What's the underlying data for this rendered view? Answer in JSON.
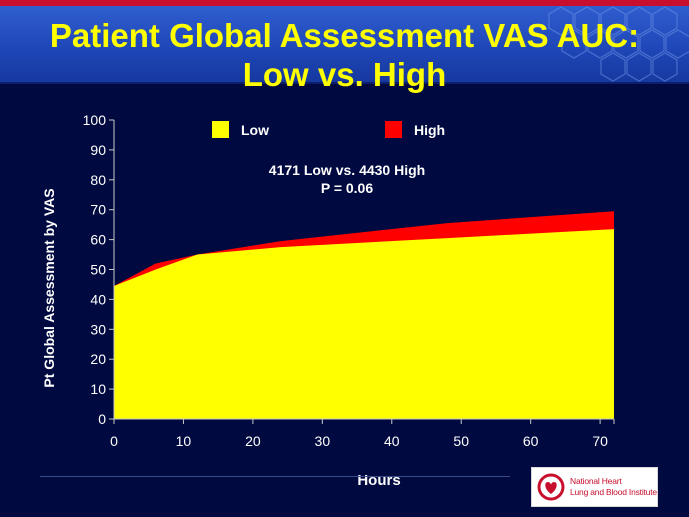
{
  "slide": {
    "title_line1": "Patient Global Assessment VAS AUC:",
    "title_line2": "Low vs. High",
    "logo_text_line1": "National Heart",
    "logo_text_line2": "Lung and Blood Institute",
    "colors": {
      "header_band": "#1f47b8",
      "background": "#000a40",
      "title_text": "#ffff00",
      "accent_stripe": "#c8102e"
    }
  },
  "chart_data": {
    "type": "area",
    "xlabel": "Hours",
    "ylabel": "Pt Global Assessment  by VAS",
    "xlim": [
      0,
      72
    ],
    "ylim": [
      0,
      100
    ],
    "x_ticks": [
      0,
      10,
      20,
      30,
      40,
      50,
      60,
      70
    ],
    "y_ticks": [
      0,
      10,
      20,
      30,
      40,
      50,
      60,
      70,
      80,
      90,
      100
    ],
    "grid": false,
    "legend_position": "top",
    "annotation_line1": "4171 Low vs. 4430 High",
    "annotation_line2": "P = 0.06",
    "series": [
      {
        "name": "High",
        "color": "#ff0000",
        "x": [
          0,
          6,
          12,
          24,
          48,
          72
        ],
        "values": [
          44.5,
          52,
          55,
          59.5,
          65.5,
          69.5
        ]
      },
      {
        "name": "Low",
        "color": "#ffff00",
        "x": [
          0,
          6,
          12,
          24,
          48,
          72
        ],
        "values": [
          44.5,
          50,
          55,
          57.5,
          60.5,
          63.5
        ]
      }
    ]
  }
}
